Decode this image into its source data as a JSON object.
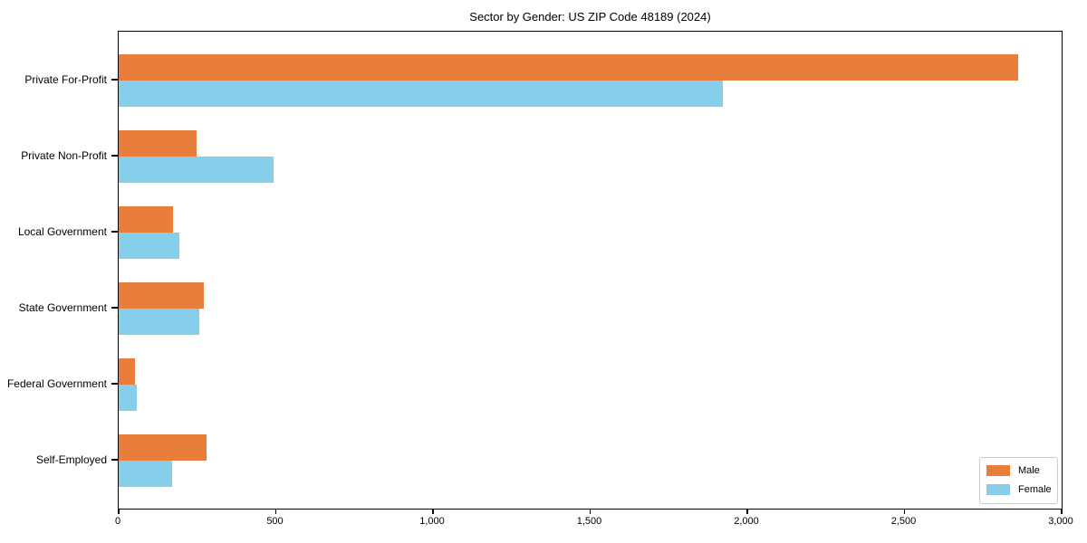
{
  "chart_data": {
    "type": "bar",
    "orientation": "horizontal",
    "title": "Sector by Gender: US ZIP Code 48189 (2024)",
    "xlabel": "",
    "ylabel": "",
    "categories": [
      "Private For-Profit",
      "Private Non-Profit",
      "Local Government",
      "State Government",
      "Federal Government",
      "Self-Employed"
    ],
    "series": [
      {
        "name": "Male",
        "color": "#e87d3c",
        "values": [
          2865,
          248,
          173,
          270,
          52,
          279
        ]
      },
      {
        "name": "Female",
        "color": "#87ceeb",
        "values": [
          1925,
          492,
          193,
          258,
          58,
          170
        ]
      }
    ],
    "xlim": [
      0,
      3000
    ],
    "xticks": [
      0,
      500,
      1000,
      1500,
      2000,
      2500,
      3000
    ],
    "xtick_labels": [
      "0",
      "500",
      "1,000",
      "1,500",
      "2,000",
      "2,500",
      "3,000"
    ],
    "grid": false,
    "legend": {
      "position": "lower right"
    }
  }
}
